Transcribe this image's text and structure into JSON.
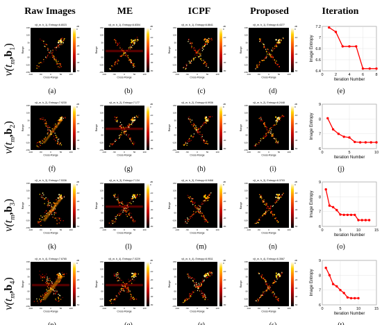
{
  "headers": [
    "Raw Images",
    "ME",
    "ICPF",
    "Proposed",
    "Iteration"
  ],
  "rows": [
    {
      "label_main": "v(t",
      "label_sub": "m",
      "label_mid": ",b",
      "label_idx": "1",
      "panels": [
        {
          "title": "v(t_m, b_1), Entropy=6.8023",
          "letter": "(a)"
        },
        {
          "title": "v(t_m, b_1), Entropy=6.8304",
          "letter": "(b)"
        },
        {
          "title": "v(t_m, b_1), Entropy=6.8641",
          "letter": "(c)"
        },
        {
          "title": "v(t_m, b_1), Entropy=6.4377",
          "letter": "(d)"
        }
      ],
      "iter_letter": "(e)"
    },
    {
      "label_main": "v(t",
      "label_sub": "m",
      "label_mid": ",b",
      "label_idx": "2",
      "panels": [
        {
          "title": "v(t_m, b_2), Entropy=7.9230",
          "letter": "(f)"
        },
        {
          "title": "v(t_m, b_2), Entropy=7.177",
          "letter": "(g)"
        },
        {
          "title": "v(t_m, b_2), Entropy=6.9936",
          "letter": "(h)"
        },
        {
          "title": "v(t_m, b_2), Entropy=6.2448",
          "letter": "(i)"
        }
      ],
      "iter_letter": "(j)"
    },
    {
      "label_main": "v(t",
      "label_sub": "m",
      "label_mid": ",b",
      "label_idx": "3",
      "panels": [
        {
          "title": "v(t_m, b_3), Entropy=7.5336",
          "letter": "(k)"
        },
        {
          "title": "v(t_m, b_3), Entropy=7.134",
          "letter": "(l)"
        },
        {
          "title": "v(t_m, b_3), Entropy=6.9468",
          "letter": "(m)"
        },
        {
          "title": "v(t_m, b_3), Entropy=6.3703",
          "letter": "(n)"
        }
      ],
      "iter_letter": "(o)"
    },
    {
      "label_main": "v(t",
      "label_sub": "m",
      "label_mid": ",b",
      "label_idx": "4",
      "panels": [
        {
          "title": "v(t_m, b_4), Entropy=7.6765",
          "letter": "(p)"
        },
        {
          "title": "v(t_m, b_4), Entropy=7.0229",
          "letter": "(q)"
        },
        {
          "title": "v(t_m, b_4), Entropy=6.9511",
          "letter": "(r)"
        },
        {
          "title": "v(t_m, b_4), Entropy=6.3567",
          "letter": "(s)"
        }
      ],
      "iter_letter": "(t)"
    }
  ],
  "radar_axes": {
    "xlabel": "Cross-Range",
    "ylabel": "Range",
    "xticks": [
      "-100",
      "-50",
      "0",
      "50",
      "100"
    ],
    "yticks": [
      "-150",
      "-100",
      "-50",
      "0",
      "50",
      "100",
      "150"
    ],
    "cbar_unit": "dB",
    "cbar_ticks": [
      "0",
      "-10",
      "-20",
      "-30",
      "-40",
      "-50"
    ]
  },
  "chart_data": [
    {
      "type": "line",
      "xlabel": "Iteration Number",
      "ylabel": "Image Entropy",
      "x": [
        1,
        2,
        3,
        4,
        5,
        6,
        7,
        8
      ],
      "y": [
        7.18,
        7.1,
        6.84,
        6.84,
        6.84,
        6.44,
        6.44,
        6.44
      ],
      "xlim": [
        0,
        8
      ],
      "ylim": [
        6.4,
        7.2
      ],
      "xticks": [
        0,
        2,
        4,
        6,
        8
      ],
      "yticks": [
        6.4,
        6.6,
        6.8,
        7,
        7.2
      ],
      "grid": true,
      "color": "#ff0000"
    },
    {
      "type": "line",
      "xlabel": "Iteration Number",
      "ylabel": "Image Entropy",
      "x": [
        1,
        2,
        3,
        4,
        5,
        6,
        7,
        8,
        9,
        10
      ],
      "y": [
        8.05,
        7.3,
        7.0,
        6.8,
        6.75,
        6.45,
        6.42,
        6.42,
        6.42,
        6.42
      ],
      "xlim": [
        0,
        10
      ],
      "ylim": [
        6,
        9
      ],
      "xticks": [
        0,
        5,
        10
      ],
      "yticks": [
        6,
        7,
        8,
        9
      ],
      "grid": true,
      "color": "#ff0000"
    },
    {
      "type": "line",
      "xlabel": "Iteration Number",
      "ylabel": "Image Entropy",
      "x": [
        1,
        2,
        3,
        4,
        5,
        6,
        7,
        8,
        9,
        10,
        11,
        12,
        13
      ],
      "y": [
        8.5,
        7.4,
        7.3,
        7.1,
        6.8,
        6.78,
        6.78,
        6.78,
        6.78,
        6.42,
        6.42,
        6.42,
        6.42
      ],
      "xlim": [
        0,
        15
      ],
      "ylim": [
        6,
        9
      ],
      "xticks": [
        0,
        5,
        10,
        15
      ],
      "yticks": [
        6,
        7,
        8,
        9
      ],
      "grid": true,
      "color": "#ff0000"
    },
    {
      "type": "line",
      "xlabel": "Iteration Number",
      "ylabel": "Image Entropy",
      "x": [
        1,
        2,
        3,
        4,
        5,
        6,
        7,
        8,
        9,
        10
      ],
      "y": [
        8.5,
        8.0,
        7.4,
        7.25,
        7.0,
        6.8,
        6.5,
        6.45,
        6.45,
        6.45
      ],
      "xlim": [
        0,
        15
      ],
      "ylim": [
        6,
        9
      ],
      "xticks": [
        0,
        5,
        10,
        15
      ],
      "yticks": [
        6,
        7,
        8,
        9
      ],
      "grid": true,
      "color": "#ff0000"
    }
  ]
}
